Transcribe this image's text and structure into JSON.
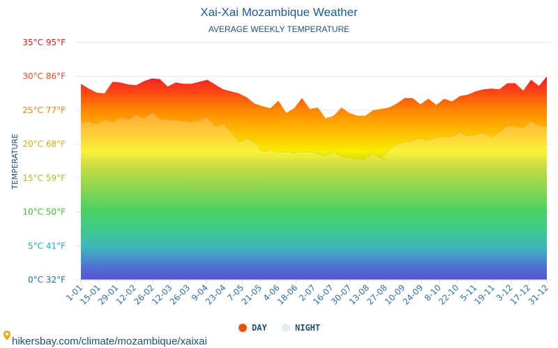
{
  "chart_data": {
    "type": "area",
    "title": "Xai-Xai Mozambique Weather",
    "subtitle": "AVERAGE WEEKLY TEMPERATURE",
    "ylabel": "TEMPERATURE",
    "ylim": [
      0,
      35
    ],
    "y_ticks": [
      {
        "value": 0,
        "label": "0°C 32°F",
        "color": "#1a70c8"
      },
      {
        "value": 5,
        "label": "5°C 41°F",
        "color": "#17a9c2"
      },
      {
        "value": 10,
        "label": "10°C 50°F",
        "color": "#3dbd2a"
      },
      {
        "value": 15,
        "label": "15°C 59°F",
        "color": "#a0c414"
      },
      {
        "value": 20,
        "label": "20°C 68°F",
        "color": "#c9b400"
      },
      {
        "value": 25,
        "label": "25°C 77°F",
        "color": "#ee7a00"
      },
      {
        "value": 30,
        "label": "30°C 86°F",
        "color": "#e8471a"
      },
      {
        "value": 35,
        "label": "35°C 95°F",
        "color": "#e01e1e"
      }
    ],
    "x_tick_labels": [
      "1-01",
      "15-01",
      "29-01",
      "12-02",
      "26-02",
      "12-03",
      "26-03",
      "9-04",
      "23-04",
      "7-05",
      "21-05",
      "4-06",
      "18-06",
      "2-07",
      "16-07",
      "30-07",
      "13-08",
      "27-08",
      "10-09",
      "24-09",
      "8-10",
      "22-10",
      "5-11",
      "19-11",
      "3-12",
      "17-12",
      "31-12"
    ],
    "series": [
      {
        "name": "DAY",
        "color": "#f04e12",
        "values": [
          28.9,
          28.2,
          27.6,
          27.5,
          29.2,
          29.1,
          28.8,
          28.7,
          29.3,
          29.7,
          29.6,
          28.5,
          29.1,
          28.9,
          28.9,
          29.2,
          29.5,
          28.8,
          28.1,
          27.8,
          27.5,
          26.9,
          26.0,
          25.6,
          25.3,
          26.4,
          24.6,
          25.3,
          26.8,
          25.2,
          25.4,
          23.8,
          24.2,
          25.4,
          24.6,
          24.2,
          24.2,
          25.0,
          25.2,
          25.4,
          26.0,
          26.8,
          26.8,
          25.9,
          26.7,
          25.8,
          26.7,
          26.3,
          27.1,
          27.3,
          27.8,
          28.1,
          28.2,
          28.1,
          29.0,
          29.0,
          27.9,
          29.5,
          28.6,
          30.0
        ]
      },
      {
        "name": "NIGHT",
        "color": "#e4edf3",
        "values": [
          23.1,
          23.3,
          23.0,
          23.6,
          23.2,
          23.9,
          23.6,
          24.3,
          23.8,
          24.6,
          23.7,
          23.6,
          23.5,
          23.4,
          23.2,
          23.4,
          23.9,
          22.6,
          23.0,
          21.8,
          20.3,
          20.8,
          20.3,
          18.9,
          19.1,
          18.8,
          18.9,
          18.7,
          18.8,
          18.9,
          18.6,
          18.3,
          18.9,
          18.2,
          18.0,
          17.8,
          17.8,
          18.7,
          17.9,
          19.2,
          20.0,
          20.3,
          20.5,
          20.8,
          20.6,
          21.0,
          21.1,
          21.1,
          21.8,
          21.2,
          21.4,
          21.6,
          21.0,
          21.8,
          22.7,
          22.6,
          22.4,
          23.4,
          22.7,
          22.6
        ]
      }
    ]
  },
  "legend": [
    {
      "label": "DAY",
      "color": "#f04e12"
    },
    {
      "label": "NIGHT",
      "color": "#e4edf3"
    }
  ],
  "footer": {
    "icon": "map-pin-icon",
    "text": "hikersbay.com/climate/mozambique/xaixai"
  }
}
